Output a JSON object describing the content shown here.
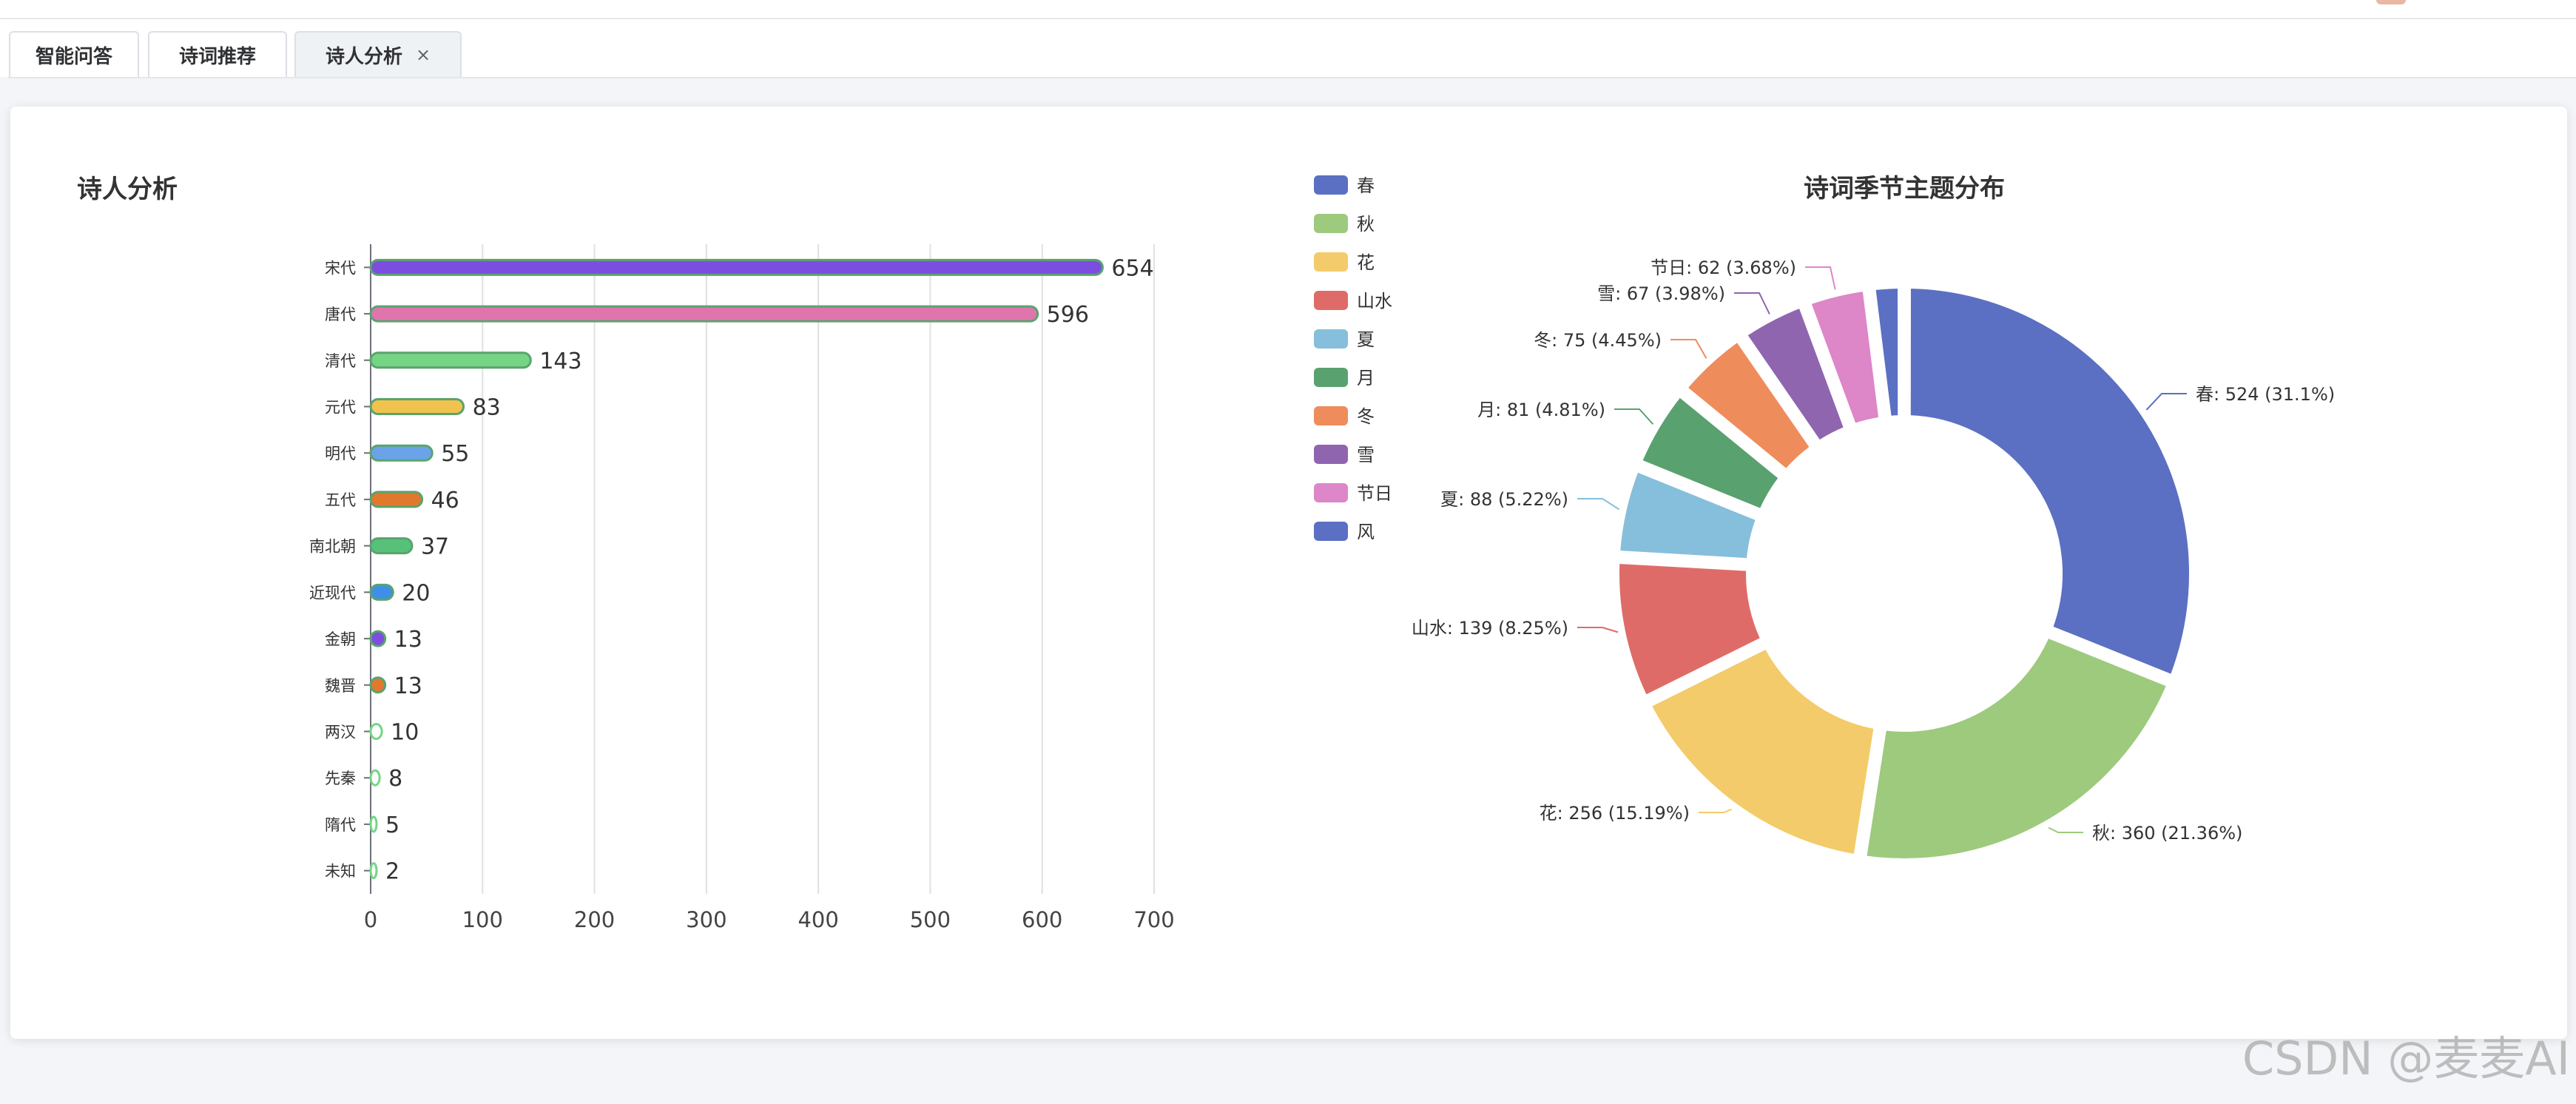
{
  "tabs": [
    {
      "label": "智能问答",
      "active": false
    },
    {
      "label": "诗词推荐",
      "active": false
    },
    {
      "label": "诗人分析",
      "active": true,
      "close": "×"
    }
  ],
  "page": {
    "title": "诗人分析"
  },
  "watermark": "CSDN @麦麦AI",
  "chart_data": [
    {
      "type": "bar",
      "orientation": "horizontal",
      "title": "",
      "categories": [
        "宋代",
        "唐代",
        "清代",
        "元代",
        "明代",
        "五代",
        "南北朝",
        "近现代",
        "金朝",
        "魏晋",
        "两汉",
        "先秦",
        "隋代",
        "未知"
      ],
      "values": [
        654,
        596,
        143,
        83,
        55,
        46,
        37,
        20,
        13,
        13,
        10,
        8,
        5,
        2
      ],
      "colors": [
        "#7b4ee0",
        "#e075ad",
        "#75d585",
        "#f0c24e",
        "#6aa3e8",
        "#e0792e",
        "#57c17a",
        "#3f8fe8",
        "#7b4ee0",
        "#e0792e",
        "#75d585",
        "#75d585",
        "#75d585",
        "#75d585"
      ],
      "xlim": [
        0,
        700
      ],
      "xticks": [
        0,
        100,
        200,
        300,
        400,
        500,
        600,
        700
      ],
      "grid": true,
      "data_labels": true
    },
    {
      "type": "pie",
      "variant": "donut",
      "title": "诗词季节主题分布",
      "legend_position": "left",
      "slices": [
        {
          "name": "春",
          "value": 524,
          "label": "春: 524 (31.1%)",
          "color": "#5b70c2"
        },
        {
          "name": "秋",
          "value": 360,
          "label": "秋: 360 (21.36%)",
          "color": "#9dca7d"
        },
        {
          "name": "花",
          "value": 256,
          "label": "花: 256 (15.19%)",
          "color": "#f3cb6a"
        },
        {
          "name": "山水",
          "value": 139,
          "label": "山水: 139 (8.25%)",
          "color": "#df6b68"
        },
        {
          "name": "夏",
          "value": 88,
          "label": "夏: 88 (5.22%)",
          "color": "#86bfdb"
        },
        {
          "name": "月",
          "value": 81,
          "label": "月: 81 (4.81%)",
          "color": "#5aa170"
        },
        {
          "name": "冬",
          "value": 75,
          "label": "冬: 75 (4.45%)",
          "color": "#ef8c5c"
        },
        {
          "name": "雪",
          "value": 67,
          "label": "雪: 67 (3.98%)",
          "color": "#9065b0"
        },
        {
          "name": "节日",
          "value": 62,
          "label": "节日: 62 (3.68%)",
          "color": "#dd86c8"
        },
        {
          "name": "风",
          "value": 33,
          "label": "",
          "color": "#5b70c2"
        }
      ]
    }
  ]
}
